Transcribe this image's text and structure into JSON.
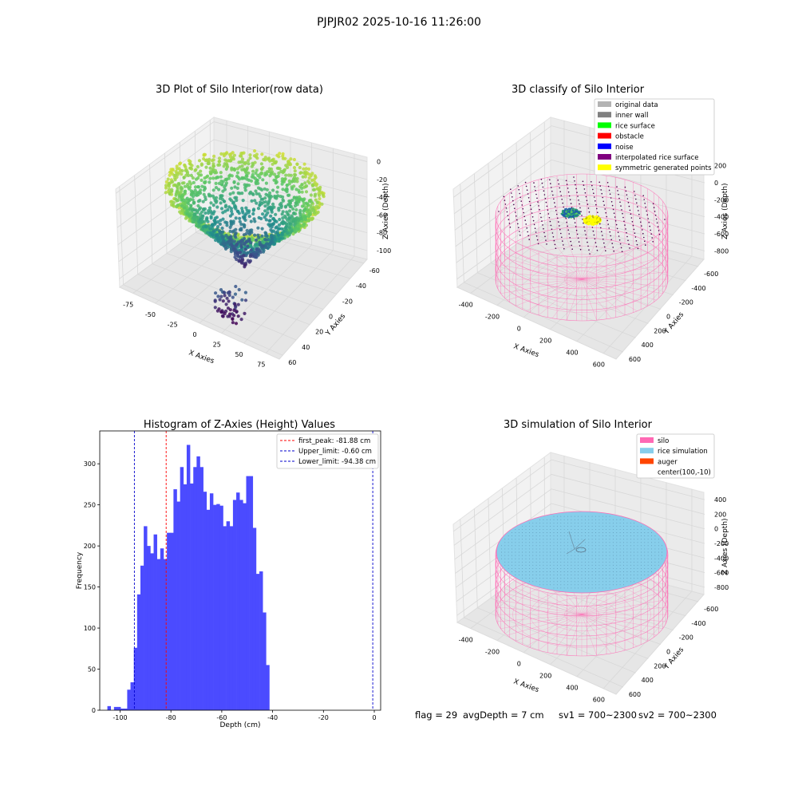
{
  "suptitle": "PJPJR02 2025-10-16 11:26:00",
  "status": {
    "flag": "flag = 29",
    "avg_depth": "avgDepth = 7 cm",
    "sv1": "sv1 = 700~2300",
    "sv2": "sv2 = 700~2300"
  },
  "chart_data": [
    {
      "type": "scatter",
      "title": "3D Plot of Silo Interior(row data)",
      "xlabel": "X Axies",
      "ylabel": "Y Axies",
      "zlabel": "Z Axies (Depth)",
      "x_ticks": [
        -75,
        -50,
        -25,
        0,
        25,
        50,
        75
      ],
      "y_ticks": [
        -60,
        -40,
        -20,
        0,
        20,
        40,
        60
      ],
      "z_ticks": [
        -100,
        -80,
        -60,
        -40,
        -20,
        0
      ],
      "xlim": [
        -90,
        90
      ],
      "ylim": [
        -65,
        65
      ],
      "zlim": [
        -110,
        5
      ],
      "colormap": "viridis"
    },
    {
      "type": "scatter",
      "title": "3D classify of Silo Interior",
      "xlabel": "X Axies",
      "ylabel": "Y Axies",
      "zlabel": "Z Axies (Depth)",
      "x_ticks": [
        -400,
        -200,
        0,
        200,
        400,
        600
      ],
      "y_ticks": [
        -600,
        -400,
        -200,
        0,
        200,
        400,
        600
      ],
      "z_ticks": [
        -800,
        -600,
        -400,
        -200,
        0,
        200
      ],
      "xlim": [
        -500,
        700
      ],
      "ylim": [
        -700,
        700
      ],
      "zlim": [
        -900,
        300
      ],
      "legend": {
        "placement": "top-right",
        "entries": [
          {
            "label": "original data",
            "color": "#b3b3b3"
          },
          {
            "label": "inner wall",
            "color": "#808080"
          },
          {
            "label": "rice surface",
            "color": "#00ff00"
          },
          {
            "label": "obstacle",
            "color": "#ff0000"
          },
          {
            "label": "noise",
            "color": "#0000ff"
          },
          {
            "label": "interpolated rice surface",
            "color": "#800080"
          },
          {
            "label": "symmetric generated points",
            "color": "#ffff00"
          }
        ]
      }
    },
    {
      "type": "bar",
      "title": "Histogram of Z-Axies (Height) Values",
      "xlabel": "Depth (cm)",
      "ylabel": "Frequency",
      "xlim": [
        -108,
        2.5
      ],
      "ylim": [
        0,
        340
      ],
      "x_ticks": [
        -100,
        -80,
        -60,
        -40,
        -20,
        0
      ],
      "y_ticks": [
        0,
        50,
        100,
        150,
        200,
        250,
        300
      ],
      "bin_start": -105.0,
      "bin_width": 1.3,
      "values": [
        5,
        0,
        4,
        4,
        2,
        2,
        25,
        34,
        76,
        141,
        176,
        224,
        200,
        191,
        214,
        184,
        197,
        184,
        216,
        216,
        269,
        254,
        296,
        275,
        323,
        276,
        296,
        309,
        296,
        266,
        244,
        264,
        250,
        251,
        249,
        224,
        230,
        224,
        256,
        265,
        256,
        252,
        285,
        285,
        222,
        166,
        169,
        119,
        55
      ],
      "bar_color": "#4b4bff",
      "vlines": [
        {
          "label": "first_peak: -81.88 cm",
          "x": -81.88,
          "color": "#ff0000"
        },
        {
          "label": "Upper_limit: -0.60 cm",
          "x": -0.6,
          "color": "#0000cc"
        },
        {
          "label": "Lower_limit: -94.38 cm",
          "x": -94.38,
          "color": "#0000cc"
        }
      ],
      "legend": {
        "placement": "top-right"
      }
    },
    {
      "type": "scatter",
      "title": "3D simulation of Silo Interior",
      "xlabel": "X Axies",
      "ylabel": "Y Axies",
      "zlabel": "Z Axies (Depth)",
      "x_ticks": [
        -400,
        -200,
        0,
        200,
        400,
        600
      ],
      "y_ticks": [
        -600,
        -400,
        -200,
        0,
        200,
        400,
        600
      ],
      "z_ticks": [
        -800,
        -600,
        -400,
        -200,
        0,
        200,
        400
      ],
      "xlim": [
        -500,
        700
      ],
      "ylim": [
        -700,
        700
      ],
      "zlim": [
        -900,
        500
      ],
      "legend": {
        "placement": "top-right",
        "entries": [
          {
            "label": "silo",
            "color": "#ff69b4"
          },
          {
            "label": "rice simulation",
            "color": "#87ceeb"
          },
          {
            "label": "auger",
            "color": "#ff4500"
          },
          {
            "label": "center(100,-10)",
            "color": "#ffffff"
          }
        ]
      }
    }
  ]
}
